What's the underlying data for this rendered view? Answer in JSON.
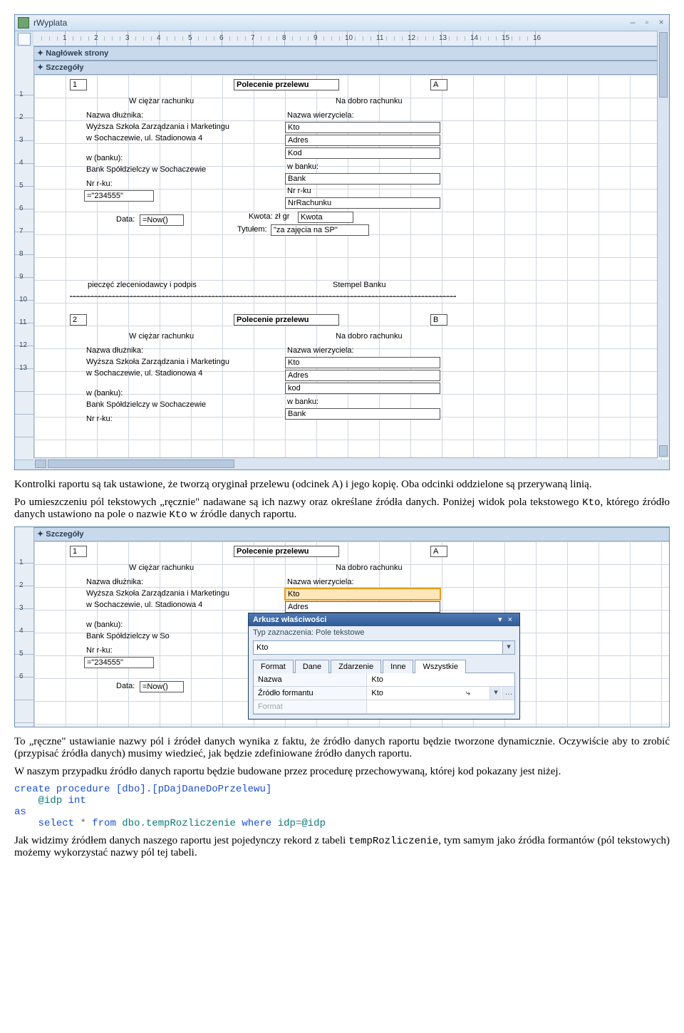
{
  "win1": {
    "title": "rWyplata",
    "ruler_max": 16,
    "sec_header": "✦ Nagłówek strony",
    "sec_detail": "✦ Szczegóły",
    "labels": {
      "corner1": "1",
      "cornerA": "A",
      "title": "Polecenie przelewu",
      "wciezar": "W ciężar rachunku",
      "nadobro": "Na dobro rachunku",
      "nazwad": "Nazwa dłużnika:",
      "nazwaw": "Nazwa wierzyciela:",
      "adres_d1": "Wyższa Szkoła Zarządzania i Marketingu",
      "adres_d2": "w Sochaczewie, ul. Stadionowa 4",
      "wbanku": "w (banku):",
      "bankd": "Bank Spółdzielczy w Sochaczewie",
      "nrrku": "Nr r-ku:",
      "nrval": "=\"234555\"",
      "data": "Data:",
      "datav": "=Now()",
      "kwota": "Kwota: zł gr",
      "kwotaf": "Kwota",
      "tytul": "Tytułem:",
      "tytulv": "\"za zajęcia na SP\"",
      "kto": "Kto",
      "adres": "Adres",
      "kod": "Kod",
      "bank": "Bank",
      "nrrkup": "Nr r-ku",
      "nrrach": "NrRachunku",
      "pieczec": "pieczęć zleceniodawcy i podpis",
      "stempel": "Stempel Banku",
      "corner2": "2",
      "cornerB": "B",
      "kod2": "kod",
      "wbanku2": "w  banku:"
    }
  },
  "text": {
    "p1": "Kontrolki raportu są tak ustawione, że tworzą oryginał przelewu (odcinek A) i jego kopię. Oba odcinki oddzielone są przerywaną linią.",
    "p2": "Po umieszczeniu pól tekstowych „ręcznie\" nadawane są ich nazwy oraz określane źródła danych. Poniżej widok pola tekstowego Kto, którego źródło danych ustawiono na pole o nazwie Kto w źródle danych raportu.",
    "p3": "To „ręczne\" ustawianie nazwy pól i źródeł danych wynika z faktu, że źródło danych raportu będzie tworzone dynamicznie. Oczywiście aby to zrobić (przypisać źródła danych) musimy wiedzieć, jak będzie zdefiniowane źródło danych raportu.",
    "p4": "W naszym przypadku źródło danych raportu będzie budowane przez procedurę przechowywaną, której kod pokazany jest niżej.",
    "code": {
      "l1": "create procedure [dbo].[pDajDaneDoPrzelewu]",
      "l2": "    @idp int",
      "l3": "as",
      "l4": "    select * from dbo.tempRozliczenie where idp=@idp"
    },
    "p5": "Jak widzimy źródłem danych naszego raportu jest pojedynczy rekord z tabeli tempRozliczenie, tym samym jako źródła formantów (pól tekstowych) możemy wykorzystać nazwy pól tej tabeli."
  },
  "props": {
    "title": "Arkusz właściwości",
    "subtitle": "Typ zaznaczenia:  Pole tekstowe",
    "selected": "Kto",
    "tabs": [
      "Format",
      "Dane",
      "Zdarzenie",
      "Inne",
      "Wszystkie"
    ],
    "active_tab": 4,
    "rows": [
      {
        "k": "Nazwa",
        "v": "Kto",
        "dd": false
      },
      {
        "k": "Źródło formantu",
        "v": "Kto",
        "dd": true
      }
    ],
    "ghost": "Format"
  }
}
